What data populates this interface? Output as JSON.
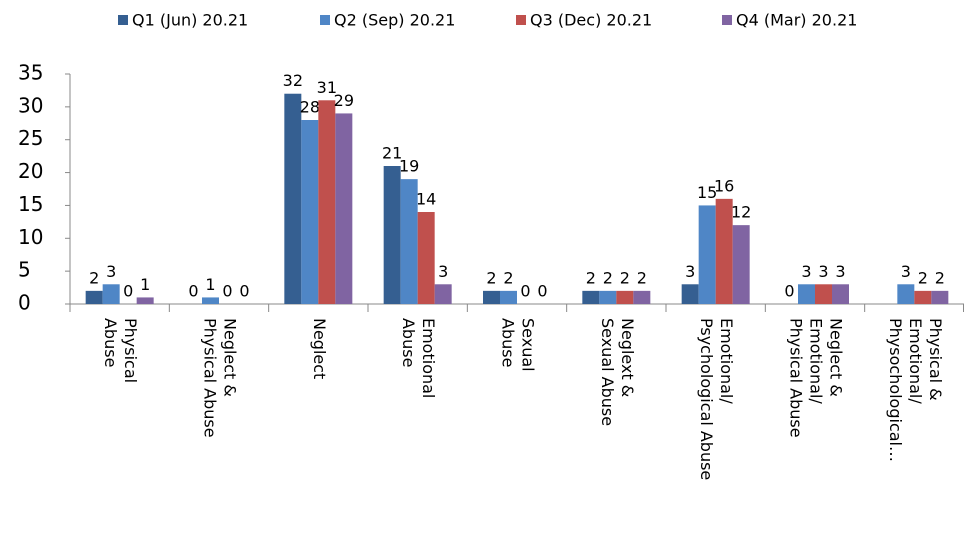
{
  "chart_data": {
    "type": "bar",
    "categories": [
      [
        "Physical",
        "Abuse"
      ],
      [
        "Neglect &",
        "Physical Abuse"
      ],
      [
        "Neglect"
      ],
      [
        "Emotional",
        "Abuse"
      ],
      [
        "Sexual",
        "Abuse"
      ],
      [
        "Neglext &",
        "Sexual Abuse"
      ],
      [
        "Emotional/",
        "Psychological Abuse"
      ],
      [
        "Neglect &",
        "Emotional/",
        "Physical Abuse"
      ],
      [
        "Physical &",
        "Emotional/",
        "Physochological…"
      ]
    ],
    "series": [
      {
        "name": "Q1 (Jun) 20.21",
        "color": "#355f91",
        "values": [
          2,
          0,
          32,
          21,
          2,
          2,
          3,
          0,
          null
        ]
      },
      {
        "name": "Q2 (Sep) 20.21",
        "color": "#4f86c6",
        "values": [
          3,
          1,
          28,
          19,
          2,
          2,
          15,
          3,
          3
        ]
      },
      {
        "name": "Q3 (Dec) 20.21",
        "color": "#c0504d",
        "values": [
          0,
          0,
          31,
          14,
          0,
          2,
          16,
          3,
          2
        ]
      },
      {
        "name": "Q4 (Mar) 20.21",
        "color": "#8064a2",
        "values": [
          1,
          0,
          29,
          3,
          0,
          2,
          12,
          3,
          2
        ]
      }
    ],
    "ylim": [
      0,
      35
    ],
    "yticks": [
      0,
      5,
      10,
      15,
      20,
      25,
      30,
      35
    ],
    "grid": false,
    "legend": "top"
  }
}
